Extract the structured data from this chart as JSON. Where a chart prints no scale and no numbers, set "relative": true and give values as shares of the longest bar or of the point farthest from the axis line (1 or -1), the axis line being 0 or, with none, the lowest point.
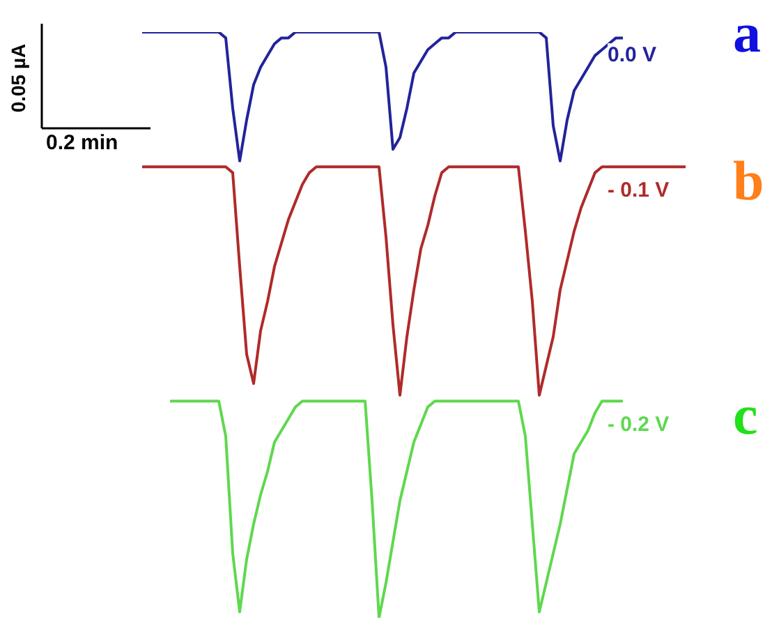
{
  "chart_data": {
    "type": "line",
    "relative": true,
    "categories": [
      null,
      null,
      null,
      null,
      null,
      null,
      null,
      null,
      null,
      null,
      null,
      null,
      null,
      null,
      null,
      null,
      null,
      null,
      null,
      null,
      null,
      null,
      null,
      null,
      null,
      null,
      null,
      null,
      null,
      null,
      null,
      null,
      null,
      null,
      null,
      null,
      null,
      null,
      null,
      null,
      null,
      null,
      null,
      null,
      null,
      null,
      null,
      null,
      null,
      null,
      null,
      null,
      null,
      null,
      null,
      null,
      null,
      null,
      null,
      null,
      null,
      null,
      null,
      null,
      null,
      null,
      null,
      null,
      null,
      null,
      null,
      null,
      null,
      null,
      null,
      null,
      null,
      null,
      null
    ],
    "series": [
      {
        "name": "0.0 V",
        "color": "#23239b",
        "values": [
          1,
          1,
          1,
          1,
          1,
          1,
          1,
          1,
          1,
          1,
          1,
          1,
          0.99,
          0.87,
          0.78,
          0.85,
          0.91,
          0.94,
          0.96,
          0.98,
          0.99,
          0.99,
          1,
          1,
          1,
          1,
          1,
          1,
          1,
          1,
          1,
          1,
          1,
          1,
          1,
          0.94,
          0.8,
          0.82,
          0.87,
          0.93,
          0.95,
          0.97,
          0.98,
          0.99,
          0.99,
          1,
          1,
          1,
          1,
          1,
          1,
          1,
          1,
          1,
          1,
          1,
          1,
          1,
          0.99,
          0.84,
          0.78,
          0.85,
          0.9,
          0.92,
          0.94,
          0.96,
          0.97,
          0.98,
          0.99,
          0.99,
          null,
          null,
          null,
          null,
          null,
          null,
          null,
          null,
          null
        ]
      },
      {
        "name": "- 0.1 V",
        "color": "#b02a2a",
        "values": [
          0.77,
          0.77,
          0.77,
          0.77,
          0.77,
          0.77,
          0.77,
          0.77,
          0.77,
          0.77,
          0.77,
          0.77,
          0.77,
          0.76,
          0.6,
          0.45,
          0.4,
          0.49,
          0.54,
          0.6,
          0.64,
          0.68,
          0.71,
          0.74,
          0.76,
          0.77,
          0.77,
          0.77,
          0.77,
          0.77,
          0.77,
          0.77,
          0.77,
          0.77,
          0.77,
          0.65,
          0.5,
          0.38,
          0.48,
          0.56,
          0.63,
          0.67,
          0.72,
          0.76,
          0.77,
          0.77,
          0.77,
          0.77,
          0.77,
          0.77,
          0.77,
          0.77,
          0.77,
          0.77,
          0.77,
          0.66,
          0.54,
          0.38,
          0.43,
          0.48,
          0.56,
          0.61,
          0.66,
          0.7,
          0.73,
          0.76,
          0.77,
          0.77,
          0.77,
          0.77,
          0.77,
          0.77,
          0.77,
          0.77,
          0.77,
          0.77,
          0.77,
          0.77,
          0.77
        ]
      },
      {
        "name": "- 0.2 V",
        "color": "#5fd84e",
        "values": [
          null,
          null,
          null,
          null,
          0.37,
          0.37,
          0.37,
          0.37,
          0.37,
          0.37,
          0.37,
          0.37,
          0.31,
          0.11,
          0.01,
          0.1,
          0.16,
          0.21,
          0.25,
          0.3,
          0.32,
          0.34,
          0.36,
          0.37,
          0.37,
          0.37,
          0.37,
          0.37,
          0.37,
          0.37,
          0.37,
          0.37,
          0.37,
          0.2,
          0,
          0.06,
          0.13,
          0.2,
          0.25,
          0.3,
          0.33,
          0.36,
          0.37,
          0.37,
          0.37,
          0.37,
          0.37,
          0.37,
          0.37,
          0.37,
          0.37,
          0.37,
          0.37,
          0.37,
          0.37,
          0.31,
          0.16,
          0.01,
          0.06,
          0.11,
          0.16,
          0.22,
          0.28,
          0.3,
          0.32,
          0.35,
          0.37,
          0.37,
          0.37,
          0.37,
          null,
          null,
          null,
          null,
          null,
          null,
          null,
          null,
          null
        ]
      }
    ],
    "annotations": [
      "a",
      "b",
      "c",
      "0.05 µA",
      "0.2 min"
    ]
  }
}
